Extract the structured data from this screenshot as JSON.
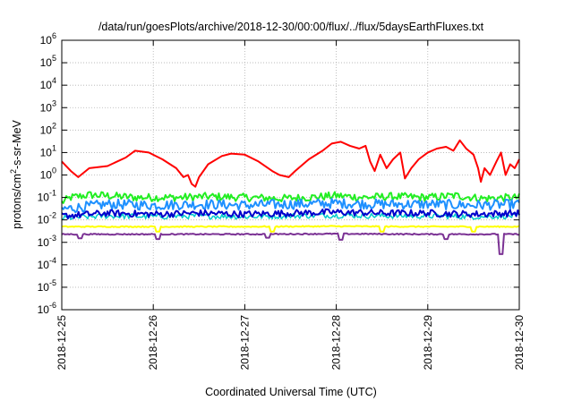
{
  "chart_data": {
    "type": "line",
    "title": "/data/run/goesPlots/archive/2018-12-30/00:00/flux/../flux/5daysEarthFluxes.txt",
    "xlabel": "Coordinated Universal Time (UTC)",
    "ylabel": "protons/cm²-s-sr-MeV",
    "ylabel_parts": {
      "base": "protons/cm",
      "sup": "2",
      "rest": "-s-sr-MeV"
    },
    "y_scale": "log",
    "ylim": [
      1e-06,
      1000000.0
    ],
    "y_ticks": [
      {
        "base": "10",
        "exp": "-6"
      },
      {
        "base": "10",
        "exp": "-5"
      },
      {
        "base": "10",
        "exp": "-4"
      },
      {
        "base": "10",
        "exp": "-3"
      },
      {
        "base": "10",
        "exp": "-2"
      },
      {
        "base": "10",
        "exp": "-1"
      },
      {
        "base": "10",
        "exp": "0"
      },
      {
        "base": "10",
        "exp": "1"
      },
      {
        "base": "10",
        "exp": "2"
      },
      {
        "base": "10",
        "exp": "3"
      },
      {
        "base": "10",
        "exp": "4"
      },
      {
        "base": "10",
        "exp": "5"
      },
      {
        "base": "10",
        "exp": "6"
      }
    ],
    "x_ticks": [
      "2018-12-25",
      "2018-12-26",
      "2018-12-27",
      "2018-12-28",
      "2018-12-29",
      "2018-12-30"
    ],
    "xlim": [
      "2018-12-25",
      "2018-12-30"
    ],
    "grid": true,
    "series": [
      {
        "color": "#ff0000",
        "stroke": 2,
        "points": [
          [
            0,
            4
          ],
          [
            0.1,
            1.5
          ],
          [
            0.18,
            0.8
          ],
          [
            0.3,
            2
          ],
          [
            0.5,
            2.5
          ],
          [
            0.7,
            6
          ],
          [
            0.8,
            12
          ],
          [
            0.95,
            10
          ],
          [
            1.1,
            5
          ],
          [
            1.25,
            2
          ],
          [
            1.33,
            0.8
          ],
          [
            1.38,
            1
          ],
          [
            1.42,
            0.4
          ],
          [
            1.46,
            0.3
          ],
          [
            1.5,
            0.8
          ],
          [
            1.6,
            3
          ],
          [
            1.75,
            7
          ],
          [
            1.85,
            9
          ],
          [
            2.0,
            8
          ],
          [
            2.15,
            4
          ],
          [
            2.3,
            1.5
          ],
          [
            2.38,
            1
          ],
          [
            2.48,
            0.8
          ],
          [
            2.55,
            1.5
          ],
          [
            2.7,
            5
          ],
          [
            2.85,
            12
          ],
          [
            2.95,
            25
          ],
          [
            3.05,
            30
          ],
          [
            3.15,
            20
          ],
          [
            3.25,
            15
          ],
          [
            3.32,
            20
          ],
          [
            3.37,
            4
          ],
          [
            3.42,
            1.5
          ],
          [
            3.48,
            8
          ],
          [
            3.55,
            2
          ],
          [
            3.62,
            5
          ],
          [
            3.7,
            10
          ],
          [
            3.75,
            0.7
          ],
          [
            3.82,
            2
          ],
          [
            3.9,
            5
          ],
          [
            4.0,
            10
          ],
          [
            4.1,
            15
          ],
          [
            4.2,
            18
          ],
          [
            4.28,
            12
          ],
          [
            4.35,
            35
          ],
          [
            4.42,
            15
          ],
          [
            4.5,
            8
          ],
          [
            4.55,
            2
          ],
          [
            4.58,
            0.5
          ],
          [
            4.62,
            2
          ],
          [
            4.68,
            1
          ],
          [
            4.75,
            4
          ],
          [
            4.8,
            10
          ],
          [
            4.85,
            1
          ],
          [
            4.9,
            3
          ],
          [
            4.95,
            2
          ],
          [
            5.0,
            5
          ],
          [
            5.1,
            12
          ],
          [
            5.2,
            15
          ],
          [
            5.3,
            18
          ],
          [
            5.4,
            10
          ],
          [
            5.5,
            12
          ],
          [
            5.58,
            15
          ],
          [
            5.65,
            10
          ],
          [
            5.7,
            8
          ]
        ]
      },
      {
        "color": "#22ee22",
        "stroke": 2,
        "points": [
          [
            0,
            0.06
          ],
          [
            0.1,
            0.1
          ],
          [
            0.3,
            0.13
          ],
          [
            0.5,
            0.12
          ],
          [
            0.8,
            0.1
          ],
          [
            1.0,
            0.1
          ],
          [
            1.3,
            0.1
          ],
          [
            1.6,
            0.11
          ],
          [
            2.0,
            0.1
          ],
          [
            2.4,
            0.09
          ],
          [
            2.7,
            0.1
          ],
          [
            3.0,
            0.12
          ],
          [
            3.3,
            0.1
          ],
          [
            3.6,
            0.11
          ],
          [
            4.0,
            0.1
          ],
          [
            4.3,
            0.12
          ],
          [
            4.6,
            0.09
          ],
          [
            5.0,
            0.1
          ],
          [
            5.3,
            0.11
          ],
          [
            5.7,
            0.1
          ]
        ],
        "jitter": 0.35
      },
      {
        "color": "#1e90ff",
        "stroke": 2,
        "points": [
          [
            0,
            0.03
          ],
          [
            0.5,
            0.05
          ],
          [
            1.0,
            0.045
          ],
          [
            1.5,
            0.05
          ],
          [
            2.0,
            0.045
          ],
          [
            2.5,
            0.05
          ],
          [
            3.0,
            0.055
          ],
          [
            3.5,
            0.05
          ],
          [
            4.0,
            0.05
          ],
          [
            4.5,
            0.045
          ],
          [
            5.0,
            0.05
          ],
          [
            5.7,
            0.045
          ]
        ],
        "jitter": 0.45
      },
      {
        "color": "#00cccc",
        "stroke": 1.5,
        "points": [
          [
            0,
            0.012
          ],
          [
            0.5,
            0.015
          ],
          [
            1.0,
            0.014
          ],
          [
            1.5,
            0.015
          ],
          [
            2.0,
            0.014
          ],
          [
            2.5,
            0.015
          ],
          [
            3.0,
            0.016
          ],
          [
            3.5,
            0.015
          ],
          [
            4.0,
            0.015
          ],
          [
            4.5,
            0.014
          ],
          [
            5.0,
            0.015
          ],
          [
            5.7,
            0.014
          ]
        ],
        "jitter": 0.25
      },
      {
        "color": "#0000cc",
        "stroke": 2,
        "points": [
          [
            0,
            0.015
          ],
          [
            0.5,
            0.02
          ],
          [
            1.0,
            0.018
          ],
          [
            1.5,
            0.02
          ],
          [
            2.0,
            0.018
          ],
          [
            2.5,
            0.02
          ],
          [
            3.0,
            0.022
          ],
          [
            3.5,
            0.02
          ],
          [
            4.0,
            0.02
          ],
          [
            4.5,
            0.018
          ],
          [
            5.0,
            0.02
          ],
          [
            5.7,
            0.018
          ]
        ],
        "jitter": 0.3
      },
      {
        "color": "#ffff00",
        "stroke": 2,
        "points": [
          [
            0,
            0.005
          ],
          [
            1.0,
            0.005
          ],
          [
            2.0,
            0.005
          ],
          [
            3.0,
            0.0052
          ],
          [
            4.0,
            0.005
          ],
          [
            5.0,
            0.005
          ],
          [
            5.7,
            0.005
          ]
        ],
        "jitter": 0.05,
        "dips": [
          [
            1.05,
            0.003
          ],
          [
            2.3,
            0.003
          ],
          [
            3.5,
            0.003
          ],
          [
            4.5,
            0.003
          ]
        ]
      },
      {
        "color": "#7b3294",
        "stroke": 2,
        "points": [
          [
            0,
            0.0023
          ],
          [
            1.0,
            0.0023
          ],
          [
            2.0,
            0.0023
          ],
          [
            3.0,
            0.0024
          ],
          [
            4.0,
            0.0023
          ],
          [
            5.0,
            0.0023
          ],
          [
            5.7,
            0.0023
          ]
        ],
        "jitter": 0.05,
        "dips": [
          [
            0.2,
            0.0015
          ],
          [
            1.05,
            0.0014
          ],
          [
            2.25,
            0.0016
          ],
          [
            3.05,
            0.0013
          ],
          [
            4.2,
            0.0014
          ],
          [
            4.8,
            0.0003
          ],
          [
            5.35,
            0.0016
          ]
        ]
      }
    ]
  }
}
